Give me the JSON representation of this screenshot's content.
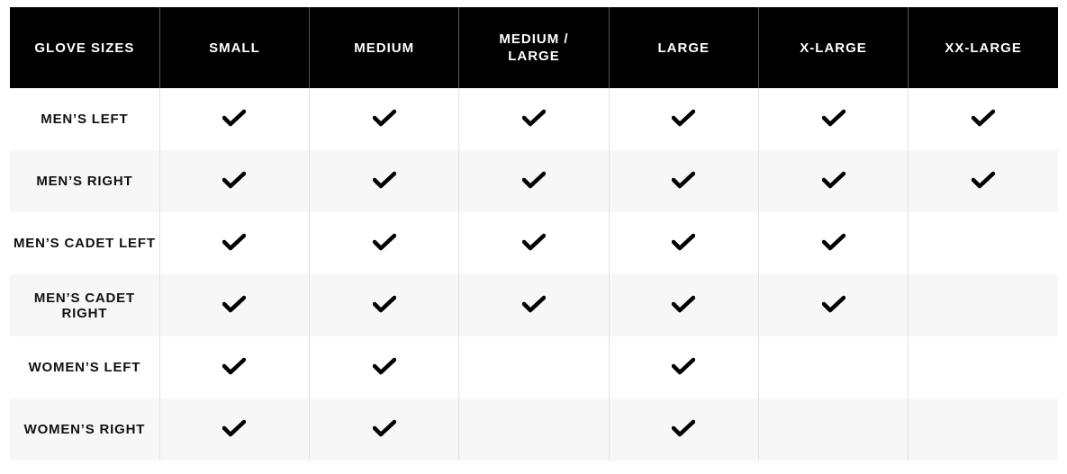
{
  "table": {
    "headers": [
      "GLOVE SIZES",
      "SMALL",
      "MEDIUM",
      "MEDIUM /\nLARGE",
      "LARGE",
      "X-LARGE",
      "XX-LARGE"
    ],
    "rows": [
      {
        "label": "MEN’S LEFT",
        "available": [
          true,
          true,
          true,
          true,
          true,
          true
        ]
      },
      {
        "label": "MEN’S RIGHT",
        "available": [
          true,
          true,
          true,
          true,
          true,
          true
        ]
      },
      {
        "label": "MEN’S CADET LEFT",
        "available": [
          true,
          true,
          true,
          true,
          true,
          false
        ]
      },
      {
        "label": "MEN’S CADET RIGHT",
        "available": [
          true,
          true,
          true,
          true,
          true,
          false
        ]
      },
      {
        "label": "WOMEN’S LEFT",
        "available": [
          true,
          true,
          false,
          true,
          false,
          false
        ]
      },
      {
        "label": "WOMEN’S RIGHT",
        "available": [
          true,
          true,
          false,
          true,
          false,
          false
        ]
      }
    ],
    "check_icon": "checkmark-icon",
    "colors": {
      "header_bg": "#000000",
      "header_text": "#ffffff",
      "alt_row_bg": "#f7f7f7"
    }
  }
}
